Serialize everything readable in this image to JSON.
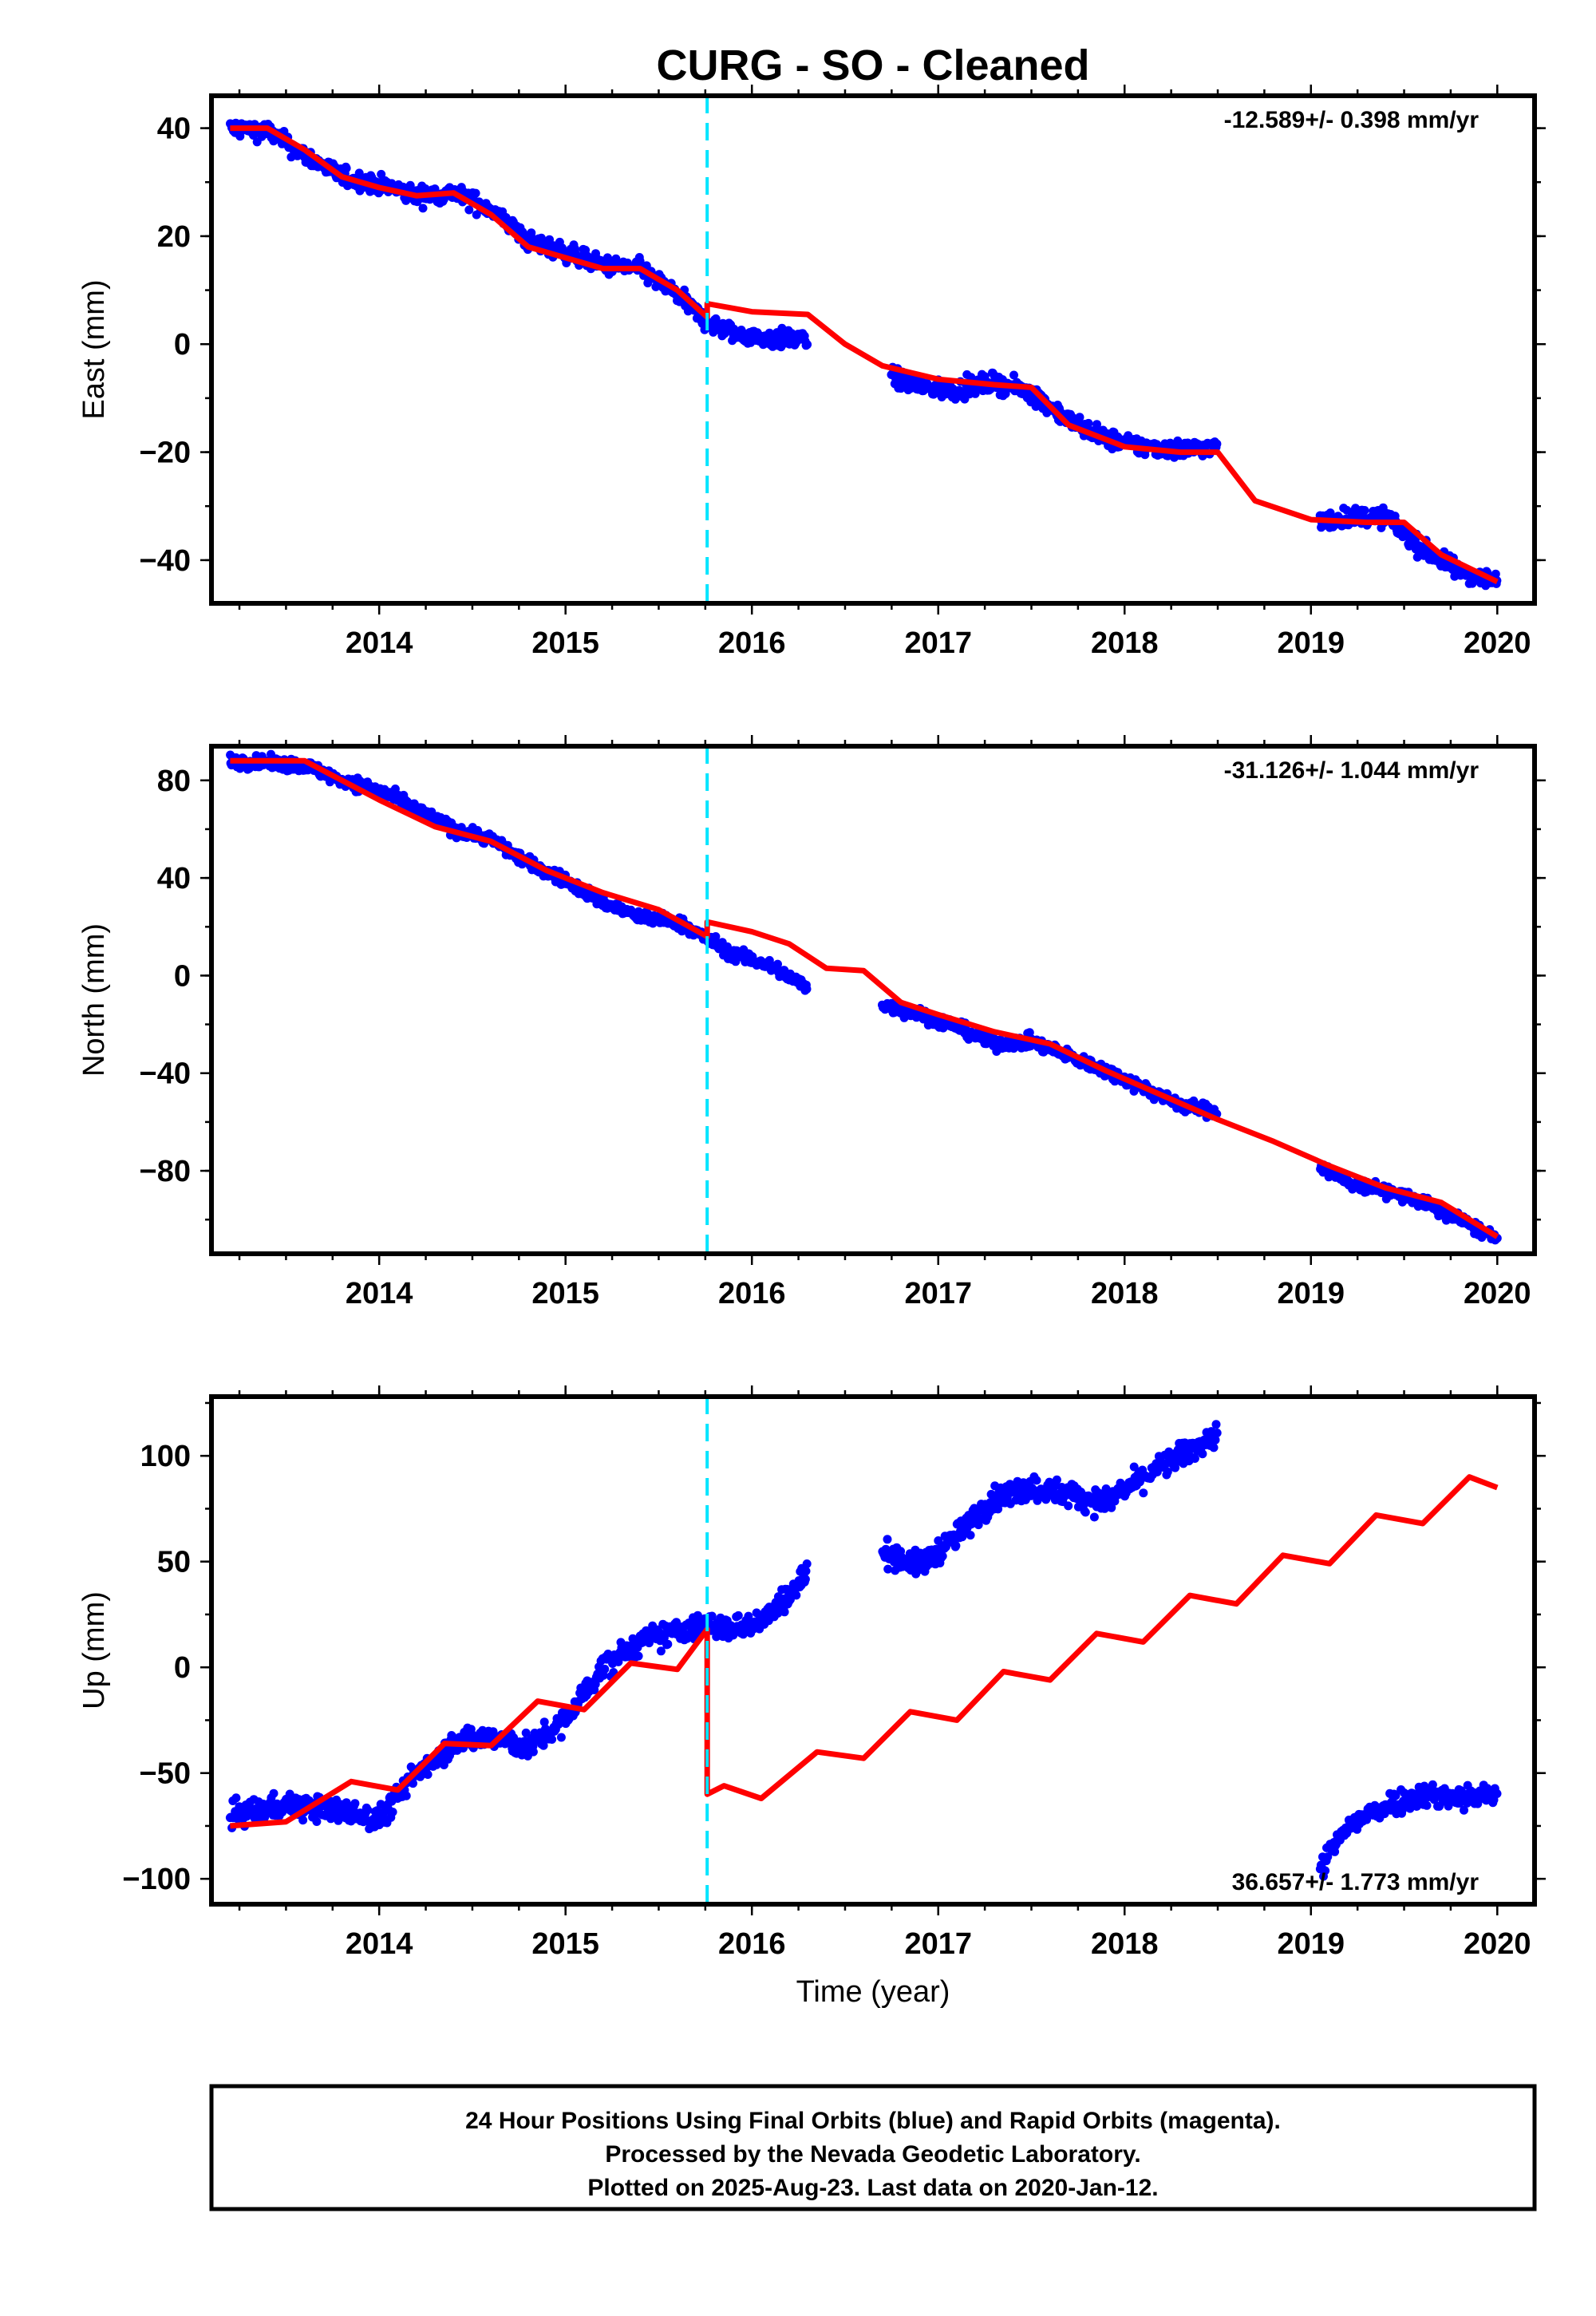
{
  "title": "CURG  - SO - Cleaned",
  "footer": {
    "lines": [
      "24 Hour Positions Using Final Orbits (blue) and Rapid Orbits (magenta).",
      "Processed by the Nevada Geodetic Laboratory.",
      "Plotted on 2025-Aug-23. Last data on 2020-Jan-12."
    ]
  },
  "colors": {
    "observed": "#0000ff",
    "model": "#ff0000",
    "step_marker": "#00e5ff"
  },
  "chart_data": [
    {
      "type": "scatter",
      "ylabel": "East (mm)",
      "xlabel": "",
      "xlim": [
        2013.1,
        2020.2
      ],
      "ylim": [
        -48,
        46
      ],
      "yticks": [
        -40,
        -20,
        0,
        20,
        40
      ],
      "xticks": [
        2014,
        2015,
        2016,
        2017,
        2018,
        2019,
        2020
      ],
      "step_epoch": 2015.76,
      "rate_text": "-12.589+/- 0.398 mm/yr",
      "rate_position": "top-right",
      "observed_segments": [
        {
          "x": [
            2013.2,
            2013.4,
            2013.6,
            2013.8,
            2014.0,
            2014.2,
            2014.4,
            2014.6,
            2014.8,
            2015.0,
            2015.2,
            2015.4,
            2015.6,
            2015.76,
            2015.9,
            2016.1,
            2016.3
          ],
          "y": [
            40,
            39.5,
            35,
            31,
            29.5,
            27.5,
            28,
            25,
            19,
            17,
            14.5,
            14,
            9,
            4,
            2,
            1,
            1
          ]
        },
        {
          "x": [
            2016.75,
            2016.9,
            2017.1,
            2017.3,
            2017.5,
            2017.7,
            2017.9,
            2018.1,
            2018.3,
            2018.5
          ],
          "y": [
            -6,
            -8,
            -8.5,
            -7,
            -9,
            -14,
            -17.5,
            -19,
            -19.5,
            -19
          ]
        },
        {
          "x": [
            2019.05,
            2019.2,
            2019.4,
            2019.6,
            2019.8,
            2020.0
          ],
          "y": [
            -33,
            -32,
            -32,
            -38,
            -42,
            -44
          ]
        }
      ],
      "model": {
        "x": [
          2013.2,
          2013.4,
          2013.6,
          2013.8,
          2014.0,
          2014.2,
          2014.4,
          2014.6,
          2014.8,
          2015.0,
          2015.2,
          2015.4,
          2015.6,
          2015.76,
          2015.76,
          2016.0,
          2016.3,
          2016.5,
          2016.7,
          2017.0,
          2017.3,
          2017.5,
          2017.7,
          2018.0,
          2018.3,
          2018.5,
          2018.7,
          2019.0,
          2019.3,
          2019.5,
          2019.7,
          2020.0
        ],
        "y": [
          40,
          40,
          36,
          31,
          29,
          27.5,
          28,
          24,
          18,
          16,
          14,
          14,
          10,
          5,
          7.5,
          6,
          5.5,
          0,
          -4,
          -6.5,
          -7.5,
          -8,
          -15,
          -19,
          -20,
          -20,
          -29,
          -32.5,
          -33,
          -33,
          -39,
          -44
        ]
      },
      "noise_mm": 1.6
    },
    {
      "type": "scatter",
      "ylabel": "North (mm)",
      "xlabel": "",
      "xlim": [
        2013.1,
        2020.2
      ],
      "ylim": [
        -114,
        94
      ],
      "yticks": [
        -80,
        -40,
        0,
        40,
        80
      ],
      "xticks": [
        2014,
        2015,
        2016,
        2017,
        2018,
        2019,
        2020
      ],
      "step_epoch": 2015.76,
      "rate_text": "-31.126+/- 1.044 mm/yr",
      "rate_position": "top-right",
      "observed_segments": [
        {
          "x": [
            2013.2,
            2013.4,
            2013.6,
            2013.8,
            2014.0,
            2014.2,
            2014.4,
            2014.6,
            2014.8,
            2015.0,
            2015.2,
            2015.4,
            2015.6,
            2015.76,
            2015.9,
            2016.1,
            2016.3
          ],
          "y": [
            88,
            87,
            86,
            80,
            76,
            68,
            60,
            56,
            46,
            39,
            30,
            24,
            22,
            15,
            9,
            4,
            -5
          ]
        },
        {
          "x": [
            2016.7,
            2016.9,
            2017.1,
            2017.3,
            2017.5,
            2017.7,
            2017.9,
            2018.1,
            2018.3,
            2018.5
          ],
          "y": [
            -12,
            -16,
            -21,
            -28,
            -27,
            -33,
            -39,
            -46,
            -53,
            -56
          ]
        },
        {
          "x": [
            2019.05,
            2019.2,
            2019.4,
            2019.6,
            2019.8,
            2020.0
          ],
          "y": [
            -78,
            -85,
            -88,
            -93,
            -100,
            -108
          ]
        }
      ],
      "model": {
        "x": [
          2013.2,
          2013.6,
          2014.0,
          2014.3,
          2014.6,
          2014.9,
          2015.2,
          2015.5,
          2015.76,
          2015.76,
          2016.0,
          2016.2,
          2016.4,
          2016.6,
          2016.8,
          2017.0,
          2017.3,
          2017.6,
          2017.9,
          2018.2,
          2018.5,
          2018.8,
          2019.1,
          2019.4,
          2019.7,
          2020.0
        ],
        "y": [
          88,
          88,
          72,
          61,
          55,
          43,
          34,
          27,
          16,
          22,
          18,
          13,
          3,
          2,
          -11,
          -16,
          -23,
          -28,
          -39,
          -49,
          -59,
          -68,
          -78,
          -87,
          -93,
          -107
        ]
      },
      "noise_mm": 2.5
    },
    {
      "type": "scatter",
      "ylabel": "Up (mm)",
      "xlabel": "Time (year)",
      "xlim": [
        2013.1,
        2020.2
      ],
      "ylim": [
        -112,
        128
      ],
      "yticks": [
        -100,
        -50,
        0,
        50,
        100
      ],
      "xticks": [
        2014,
        2015,
        2016,
        2017,
        2018,
        2019,
        2020
      ],
      "step_epoch": 2015.76,
      "rate_text": "36.657+/- 1.773 mm/yr",
      "rate_position": "bottom-right",
      "observed_segments": [
        {
          "x": [
            2013.2,
            2013.5,
            2013.8,
            2014.0,
            2014.2,
            2014.4,
            2014.6,
            2014.8,
            2015.0,
            2015.2,
            2015.4,
            2015.6,
            2015.76,
            2015.9,
            2016.1,
            2016.3
          ],
          "y": [
            -70,
            -65,
            -68,
            -72,
            -50,
            -35,
            -33,
            -38,
            -25,
            0,
            12,
            17,
            20,
            18,
            25,
            45
          ]
        },
        {
          "x": [
            2016.7,
            2016.9,
            2017.1,
            2017.3,
            2017.5,
            2017.7,
            2017.9,
            2018.1,
            2018.3,
            2018.5
          ],
          "y": [
            55,
            48,
            62,
            80,
            85,
            82,
            78,
            90,
            100,
            110
          ]
        },
        {
          "x": [
            2019.05,
            2019.2,
            2019.4,
            2019.6,
            2019.8,
            2020.0
          ],
          "y": [
            -95,
            -75,
            -65,
            -60,
            -62,
            -60
          ]
        }
      ],
      "model": {
        "x": [
          2013.2,
          2013.5,
          2013.85,
          2014.1,
          2014.35,
          2014.6,
          2014.85,
          2015.1,
          2015.35,
          2015.6,
          2015.76,
          2015.76,
          2015.85,
          2016.05,
          2016.35,
          2016.6,
          2016.85,
          2017.1,
          2017.35,
          2017.6,
          2017.85,
          2018.1,
          2018.35,
          2018.6,
          2018.85,
          2019.1,
          2019.35,
          2019.6,
          2019.85,
          2020.0
        ],
        "y": [
          -75,
          -73,
          -54,
          -58,
          -36,
          -37,
          -16,
          -20,
          2,
          -1,
          18,
          -60,
          -56,
          -62,
          -40,
          -43,
          -21,
          -25,
          -2,
          -6,
          16,
          12,
          34,
          30,
          53,
          49,
          72,
          68,
          90,
          85
        ]
      },
      "noise_mm": 5.5
    }
  ]
}
